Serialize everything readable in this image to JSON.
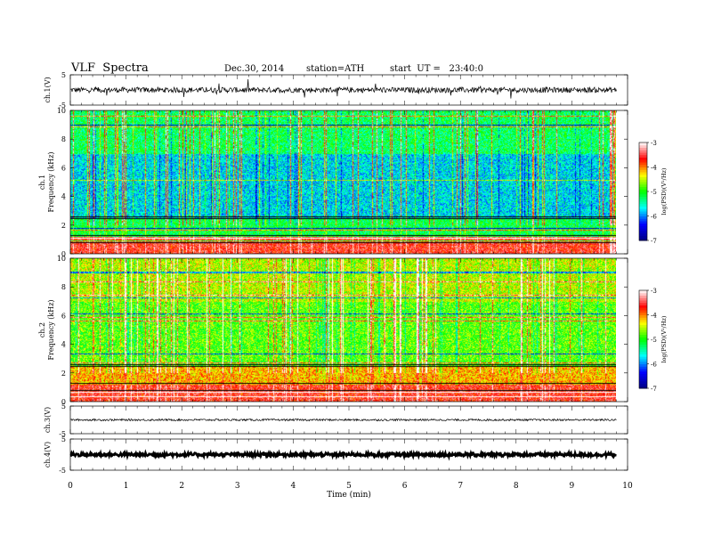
{
  "header": {
    "title": "VLF  Spectra",
    "date": "Dec.30, 2014",
    "station": "station=ATH",
    "start_ut": "start  UT =   23:40:0"
  },
  "chart_data": [
    {
      "type": "line",
      "panel": "ch1-waveform",
      "ylabel": "ch.1(V)",
      "yticks": [
        "5",
        "-5"
      ],
      "ylim": [
        -5,
        5
      ],
      "xlim": [
        0,
        10
      ],
      "data_end_min": 9.8,
      "baseline": 0
    },
    {
      "type": "heatmap",
      "panel": "ch1-spectrogram",
      "ylabel": "ch.1\nFrequency  (kHz)",
      "ylabel_lines": [
        "ch.1",
        "Frequency  (kHz)"
      ],
      "yticks": [
        "0",
        "2",
        "4",
        "6",
        "8",
        "10"
      ],
      "ylim": [
        0,
        10
      ],
      "xlim": [
        0,
        10
      ],
      "data_end_min": 9.8,
      "colorbar": {
        "label": "log(PSD)(V²/Hz)",
        "ticks": [
          "-3",
          "-4",
          "-5",
          "-6",
          "-7"
        ],
        "range": [
          -7,
          -3
        ]
      }
    },
    {
      "type": "heatmap",
      "panel": "ch2-spectrogram",
      "ylabel": "ch.2\nFrequency  (kHz)",
      "ylabel_lines": [
        "ch.2",
        "Frequency  (kHz)"
      ],
      "yticks": [
        "0",
        "2",
        "4",
        "6",
        "8",
        "10"
      ],
      "ylim": [
        0,
        10
      ],
      "xlim": [
        0,
        10
      ],
      "data_end_min": 9.8,
      "colorbar": {
        "label": "log(PSD)(V²/Hz)",
        "ticks": [
          "-3",
          "-4",
          "-5",
          "-6",
          "-7"
        ],
        "range": [
          -7,
          -3
        ]
      }
    },
    {
      "type": "line",
      "panel": "ch3-waveform",
      "ylabel": "ch.3(V)",
      "yticks": [
        "5",
        "-5"
      ],
      "ylim": [
        -5,
        5
      ],
      "xlim": [
        0,
        10
      ],
      "data_end_min": 9.8,
      "baseline": 0
    },
    {
      "type": "line",
      "panel": "ch4-waveform",
      "ylabel": "ch.4(V)",
      "yticks": [
        "5",
        "-5"
      ],
      "ylim": [
        -5,
        5
      ],
      "xlim": [
        0,
        10
      ],
      "data_end_min": 9.8,
      "baseline": 0
    }
  ],
  "xaxis": {
    "label": "Time  (min)",
    "ticks": [
      "0",
      "1",
      "2",
      "3",
      "4",
      "5",
      "6",
      "7",
      "8",
      "9",
      "10"
    ],
    "range": [
      0,
      10
    ]
  },
  "colors": {
    "colormap": [
      "#000080",
      "#0000ff",
      "#00ffff",
      "#00ff00",
      "#ffff00",
      "#ff0000",
      "#ffffff"
    ]
  }
}
